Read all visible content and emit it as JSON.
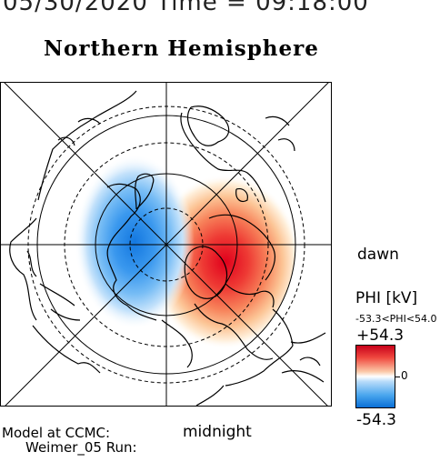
{
  "header": {
    "date_time": "05/30/2020 Time = 09:18:00",
    "hemisphere": "Northern Hemisphere"
  },
  "orientation": {
    "dawn": "dawn",
    "midnight": "midnight"
  },
  "footer": {
    "model": "Model at CCMC:",
    "run": "Weimer_05 Run:"
  },
  "colorbar": {
    "title": "PHI [kV]",
    "range_text": "-53.3<PHI<54.0",
    "max_label": "+54.3",
    "zero_label": "0",
    "min_label": "-54.3",
    "color_max": "#c8001a",
    "color_zero": "#ffffff",
    "color_min": "#0a6fd6"
  },
  "map": {
    "positive_cell_color": "#e81c1c",
    "negative_cell_color": "#1f7fe6",
    "coastline_color": "#000000"
  }
}
